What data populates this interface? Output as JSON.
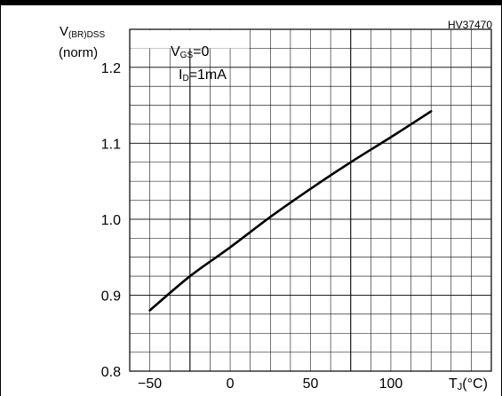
{
  "figure_code": "HV37470",
  "y_axis_label": {
    "main": "V",
    "sub": "(BR)DSS",
    "line2": "(norm)"
  },
  "x_axis_label": {
    "main": "T",
    "sub": "J",
    "unit": "(°C)"
  },
  "conditions": [
    {
      "main": "V",
      "sub": "GS",
      "rest": "=0"
    },
    {
      "main": "I",
      "sub": "D",
      "rest": "=1mA"
    }
  ],
  "chart_data": {
    "type": "line",
    "title": "",
    "xlabel": "TJ(°C)",
    "ylabel": "V(BR)DSS (norm)",
    "xlim": [
      -62.5,
      162.5
    ],
    "ylim": [
      0.8,
      1.25
    ],
    "x_ticks": [
      -50,
      0,
      50,
      100
    ],
    "x_tick_labels": [
      "−50",
      "0",
      "50",
      "100"
    ],
    "y_ticks": [
      0.8,
      0.9,
      1.0,
      1.1,
      1.2
    ],
    "y_tick_labels": [
      "0.8",
      "0.9",
      "1.0",
      "1.1",
      "1.2"
    ],
    "grid": true,
    "series": [
      {
        "x": [
          -50,
          -25,
          0,
          25,
          50,
          75,
          100,
          125
        ],
        "values": [
          0.88,
          0.925,
          0.963,
          1.003,
          1.04,
          1.075,
          1.108,
          1.142
        ]
      }
    ]
  }
}
